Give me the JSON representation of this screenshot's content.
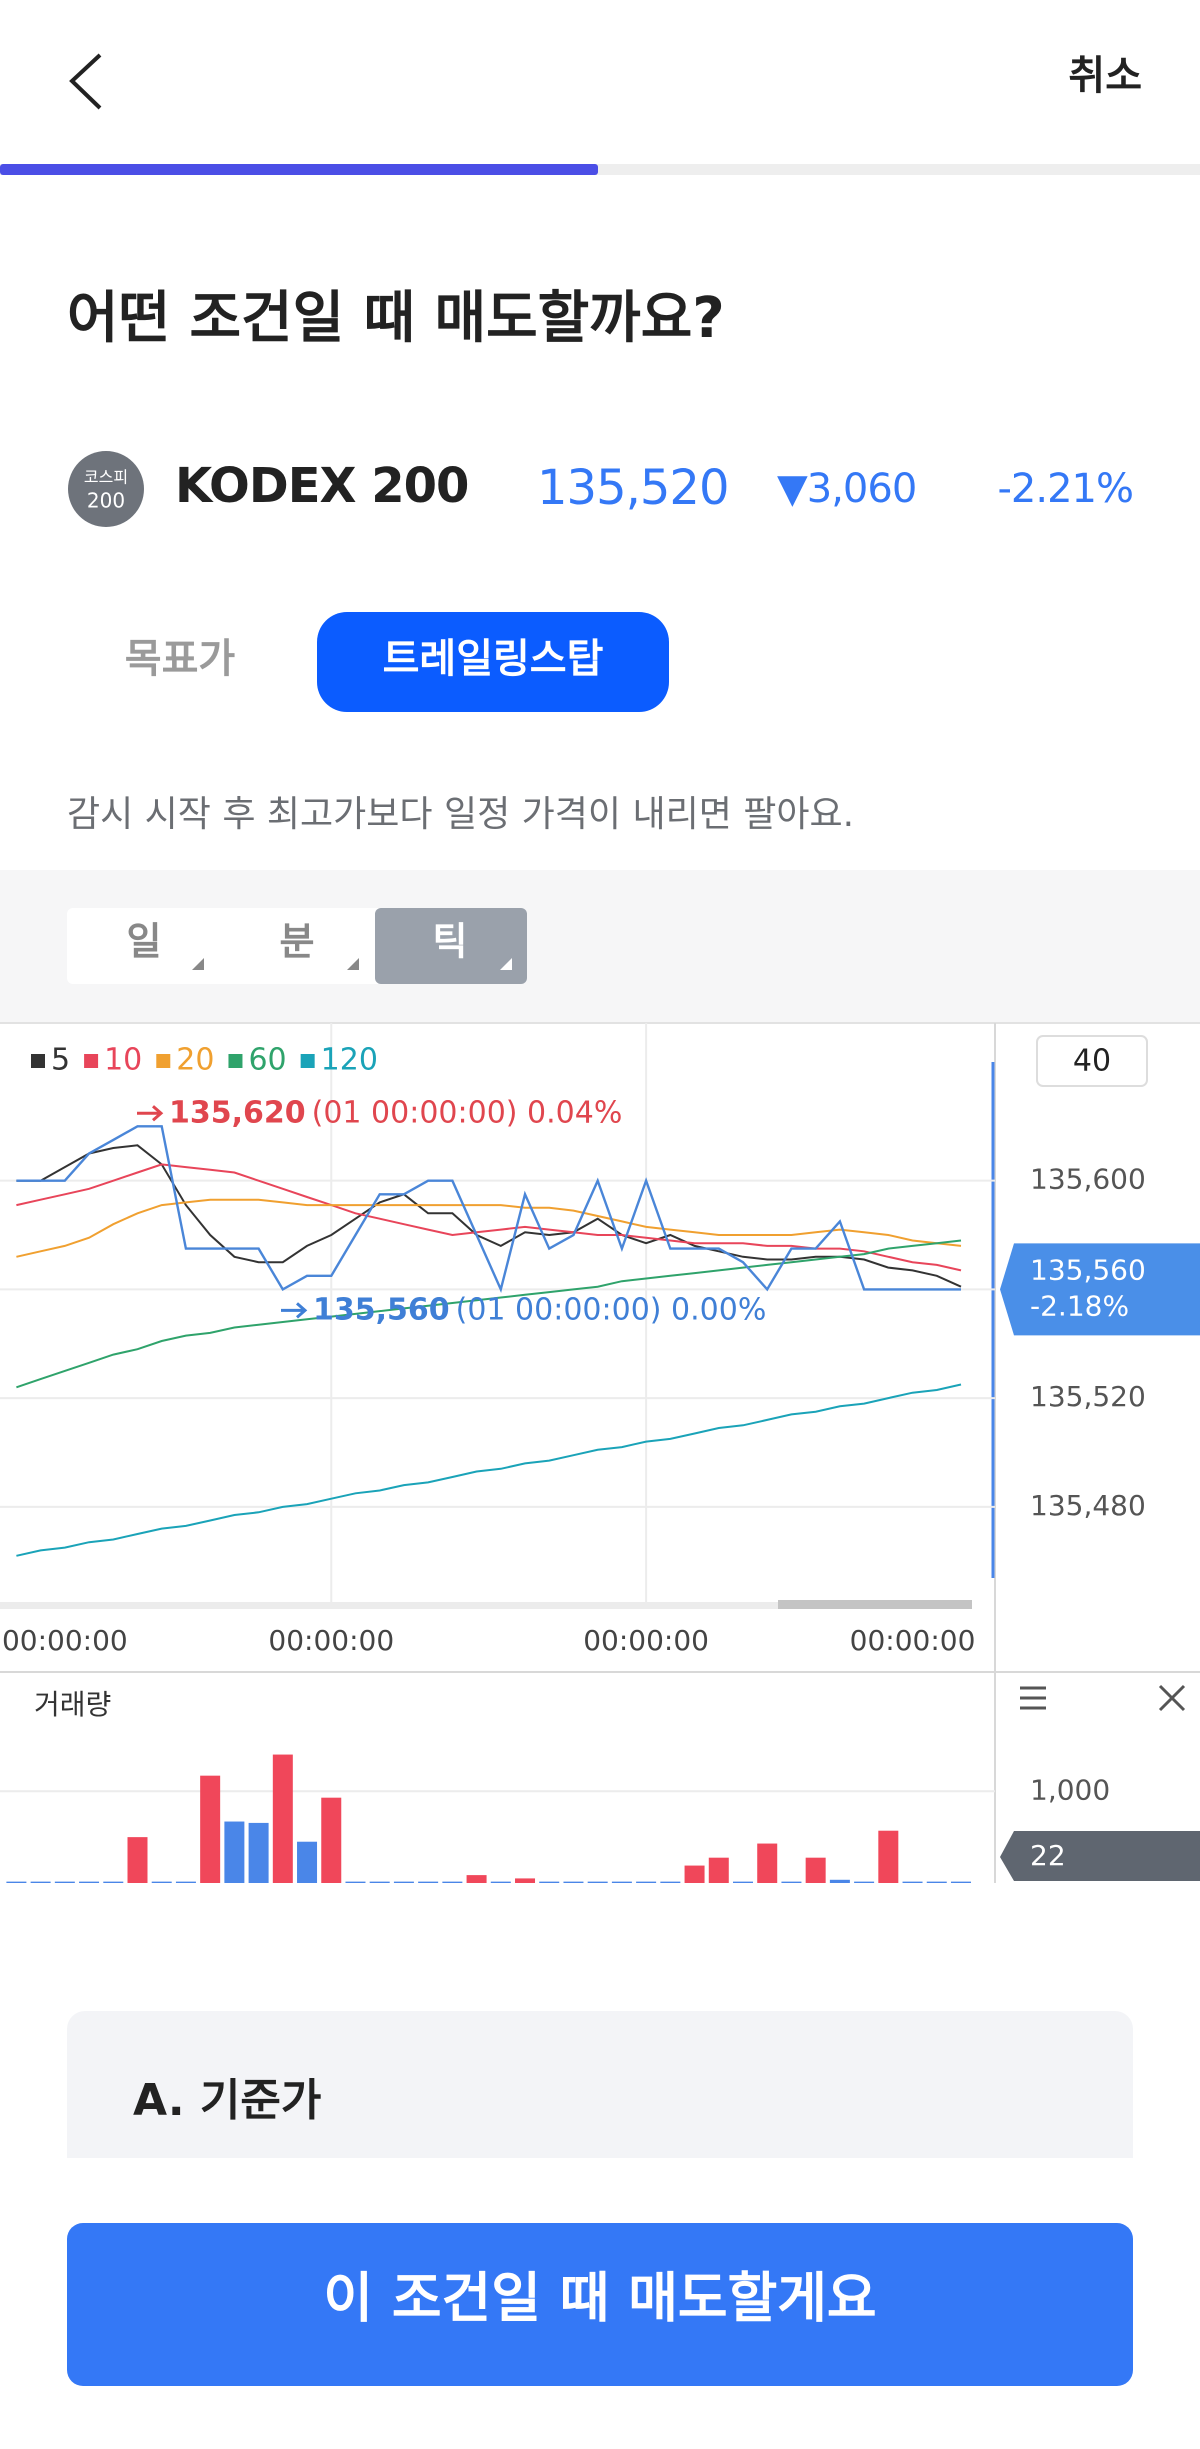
{
  "header": {
    "cancel": "취소"
  },
  "title": "어떤 조건일 때 매도할까요?",
  "stock": {
    "badge": [
      "코스피",
      "200"
    ],
    "name": "KODEX 200",
    "price": "135,520",
    "change": "▼3,060",
    "change_rate": "-2.21%"
  },
  "tabs": [
    "목표가",
    "트레일링스탑"
  ],
  "description": "감시 시작 후 최고가보다 일정 가격이 내리면 팔아요.",
  "periods": [
    "일",
    "분",
    "틱"
  ],
  "chart_data": [
    {
      "type": "line",
      "categories": [
        null,
        null,
        "00:00:00",
        null,
        null,
        null,
        null,
        null,
        null,
        null,
        null,
        null,
        null,
        "00:00:00",
        null,
        null,
        null,
        null,
        null,
        null,
        null,
        null,
        null,
        null,
        null,
        null,
        "00:00:00",
        null,
        null,
        null,
        null,
        null,
        null,
        null,
        null,
        null,
        null,
        "00:00:00",
        null,
        null
      ],
      "values": [
        135600,
        135600,
        135600,
        135610,
        135615,
        135620,
        135620,
        135575,
        135575,
        135575,
        135575,
        135560,
        135565,
        135565,
        135580,
        135595,
        135595,
        135600,
        135600,
        135580,
        135560,
        135595,
        135575,
        135580,
        135600,
        135575,
        135600,
        135575,
        135575,
        135575,
        135570,
        135560,
        135575,
        135575,
        135585,
        135560,
        135560,
        135560,
        135560,
        135560
      ],
      "color": "#4a86d8",
      "series": [
        {
          "name": "5",
          "color": "#333333",
          "values": [
            135600,
            135600,
            135605,
            135610,
            135612,
            135613,
            135606,
            135591,
            135580,
            135572,
            135570,
            135570,
            135576,
            135580,
            135586,
            135592,
            135595,
            135588,
            135588,
            135580,
            135576,
            135581,
            135580,
            135581,
            135586,
            135580,
            135577,
            135580,
            135576,
            135574,
            135572,
            135571,
            135571,
            135572,
            135572,
            135571,
            135568,
            135567,
            135565,
            135561
          ]
        },
        {
          "name": "10",
          "color": "#e8455a",
          "values": [
            135591,
            135593,
            135595,
            135597,
            135600,
            135603,
            135606,
            135605,
            135604,
            135603,
            135600,
            135597,
            135594,
            135591,
            135588,
            135586,
            135584,
            135582,
            135580,
            135581,
            135582,
            135583,
            135582,
            135581,
            135580,
            135580,
            135579,
            135578,
            135577,
            135577,
            135577,
            135576,
            135576,
            135575,
            135575,
            135574,
            135572,
            135570,
            135569,
            135567
          ]
        },
        {
          "name": "20",
          "color": "#f0a030",
          "values": [
            135572,
            135574,
            135576,
            135579,
            135584,
            135588,
            135591,
            135592,
            135593,
            135593,
            135593,
            135592,
            135591,
            135591,
            135591,
            135591,
            135591,
            135591,
            135591,
            135591,
            135591,
            135590,
            135590,
            135589,
            135587,
            135585,
            135583,
            135582,
            135581,
            135580,
            135580,
            135580,
            135580,
            135581,
            135582,
            135581,
            135580,
            135578,
            135577,
            135576
          ]
        },
        {
          "name": "60",
          "color": "#2fa36b",
          "values": [
            135524,
            135527,
            135530,
            135533,
            135536,
            135538,
            135541,
            135543,
            135544,
            135546,
            135547,
            135548,
            135549,
            135550,
            135551,
            135552,
            135553,
            135554,
            135555,
            135556,
            135557,
            135558,
            135559,
            135560,
            135561,
            135563,
            135564,
            135565,
            135566,
            135567,
            135568,
            135569,
            135570,
            135571,
            135572,
            135573,
            135575,
            135576,
            135577,
            135578
          ]
        },
        {
          "name": "120",
          "color": "#1aa3b8",
          "values": [
            135462,
            135464,
            135465,
            135467,
            135468,
            135470,
            135472,
            135473,
            135475,
            135477,
            135478,
            135480,
            135481,
            135483,
            135485,
            135486,
            135488,
            135489,
            135491,
            135493,
            135494,
            135496,
            135497,
            135499,
            135501,
            135502,
            135504,
            135505,
            135507,
            135509,
            135510,
            135512,
            135514,
            135515,
            135517,
            135518,
            135520,
            135522,
            135523,
            135525
          ]
        }
      ],
      "ylim": [
        135445,
        135658
      ],
      "yticks": [
        {
          "value": 135480,
          "label": "135,480"
        },
        {
          "value": 135520,
          "label": "135,520"
        },
        {
          "value": 135560,
          "label": "135,560"
        },
        {
          "value": 135600,
          "label": "135,600"
        }
      ],
      "grid": true,
      "legend": "top-left",
      "annotations": [
        {
          "value": 135620,
          "label": "135,620",
          "note": "(01 00:00:00) 0.04%",
          "color": "#e0464e"
        },
        {
          "value": 135560,
          "label": "135,560",
          "note": "(01 00:00:00) 0.00%",
          "color": "#3f7fd6"
        }
      ],
      "current": {
        "value": 135560,
        "label": "135,560",
        "change": "-2.18%",
        "color": "#4a8fe8"
      },
      "count": "40"
    },
    {
      "type": "bar",
      "title": "거래량",
      "values": [
        15,
        15,
        15,
        15,
        15,
        500,
        15,
        15,
        1170,
        670,
        655,
        1400,
        450,
        930,
        15,
        15,
        15,
        15,
        15,
        86,
        15,
        50,
        15,
        15,
        15,
        15,
        15,
        15,
        190,
        276,
        15,
        430,
        15,
        276,
        35,
        15,
        570,
        15,
        15,
        15
      ],
      "colors": [
        "#4a86e8",
        "#4a86e8",
        "#4a86e8",
        "#4a86e8",
        "#4a86e8",
        "#f0475a",
        "#4a86e8",
        "#4a86e8",
        "#f0475a",
        "#4a86e8",
        "#4a86e8",
        "#f0475a",
        "#4a86e8",
        "#f0475a",
        "#4a86e8",
        "#4a86e8",
        "#4a86e8",
        "#4a86e8",
        "#4a86e8",
        "#f0475a",
        "#4a86e8",
        "#f0475a",
        "#4a86e8",
        "#4a86e8",
        "#4a86e8",
        "#4a86e8",
        "#4a86e8",
        "#4a86e8",
        "#f0475a",
        "#f0475a",
        "#4a86e8",
        "#f0475a",
        "#4a86e8",
        "#f0475a",
        "#4a86e8",
        "#4a86e8",
        "#f0475a",
        "#4a86e8",
        "#4a86e8",
        "#4a86e8"
      ],
      "ylim": [
        0,
        2300
      ],
      "yticks": [
        {
          "value": 1000,
          "label": "1,000"
        }
      ],
      "grid": true,
      "current": {
        "value": 22,
        "color": "#5f6670"
      }
    }
  ],
  "section": "A. 기준가",
  "button": "이 조건일 때 매도할게요"
}
